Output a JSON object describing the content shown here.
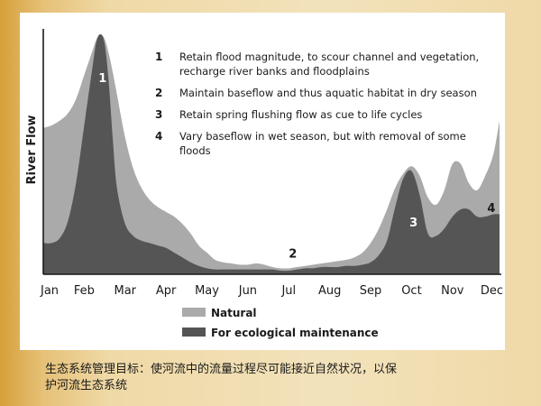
{
  "caption": [
    "生态系统管理目标：使河流中的流量过程尽可能接近自然状况，以保",
    "护河流生态系统"
  ],
  "colors": {
    "natural": "#aaaaaa",
    "ecological": "#555555",
    "axis": "#1a1a1a",
    "label_light": "#ffffff"
  },
  "chart_data": {
    "type": "area",
    "title": "",
    "ylabel": "River Flow",
    "xlabel": "",
    "categories": [
      "Jan",
      "Feb",
      "Mar",
      "Apr",
      "May",
      "Jun",
      "Jul",
      "Aug",
      "Sep",
      "Oct",
      "Nov",
      "Dec"
    ],
    "x_range": [
      0,
      11.15
    ],
    "ylim": [
      0,
      100
    ],
    "grid": false,
    "legend_position": "bottom-left",
    "series": [
      {
        "name": "Natural",
        "x": [
          0,
          0.2,
          0.4,
          0.6,
          0.8,
          1.0,
          1.2,
          1.3,
          1.4,
          1.5,
          1.6,
          1.7,
          1.8,
          2.0,
          2.2,
          2.4,
          2.6,
          2.8,
          3.0,
          3.2,
          3.4,
          3.6,
          3.8,
          4.0,
          4.2,
          4.4,
          4.6,
          4.8,
          5.0,
          5.2,
          5.4,
          5.6,
          5.8,
          6.0,
          6.2,
          6.4,
          6.6,
          6.8,
          7.0,
          7.2,
          7.4,
          7.6,
          7.8,
          8.0,
          8.2,
          8.4,
          8.6,
          8.8,
          9.0,
          9.2,
          9.4,
          9.6,
          9.8,
          10.0,
          10.2,
          10.4,
          10.6,
          10.8,
          11.0,
          11.15
        ],
        "values": [
          61,
          62,
          64,
          67,
          73,
          83,
          93,
          98,
          100,
          98,
          92,
          84,
          75,
          57,
          44,
          36,
          31,
          28,
          26,
          24,
          21,
          17,
          12,
          9,
          6,
          5,
          4.5,
          4,
          4,
          4.5,
          4,
          3,
          2.5,
          2.5,
          3,
          3.5,
          4,
          4.5,
          5,
          5.5,
          6,
          7,
          9,
          13,
          19,
          27,
          36,
          42,
          45,
          41,
          32,
          29,
          35,
          46,
          46,
          38,
          35,
          41,
          50,
          64
        ]
      },
      {
        "name": "For ecological maintenance",
        "x": [
          0,
          0.2,
          0.4,
          0.6,
          0.8,
          1.0,
          1.2,
          1.3,
          1.4,
          1.5,
          1.6,
          1.7,
          1.8,
          2.0,
          2.2,
          2.4,
          2.6,
          2.8,
          3.0,
          3.2,
          3.4,
          3.6,
          3.8,
          4.0,
          4.2,
          4.4,
          4.6,
          4.8,
          5.0,
          5.2,
          5.4,
          5.6,
          5.8,
          6.0,
          6.2,
          6.4,
          6.6,
          6.8,
          7.0,
          7.2,
          7.4,
          7.6,
          7.8,
          8.0,
          8.2,
          8.4,
          8.6,
          8.8,
          9.0,
          9.2,
          9.4,
          9.6,
          9.8,
          10.0,
          10.2,
          10.4,
          10.6,
          10.8,
          11.0,
          11.15
        ],
        "values": [
          13,
          13,
          15,
          22,
          38,
          62,
          86,
          97,
          100,
          96,
          80,
          56,
          36,
          21,
          16,
          14,
          13,
          12,
          11,
          9,
          7,
          5,
          3.5,
          2.5,
          2,
          2,
          2,
          2,
          2,
          2,
          2,
          2,
          1.5,
          1.5,
          2,
          2.5,
          2.5,
          3,
          3,
          3,
          3.5,
          3.5,
          4,
          5,
          8,
          14,
          28,
          40,
          43,
          33,
          17,
          16,
          19,
          24,
          27,
          27,
          24,
          24,
          25,
          25
        ]
      }
    ],
    "peak_labels": [
      "1",
      "2",
      "3",
      "4"
    ],
    "notes": [
      {
        "num": "1",
        "lines": [
          "Retain flood magnitude, to scour channel and vegetation,",
          "recharge river banks and floodplains"
        ]
      },
      {
        "num": "2",
        "lines": [
          "Maintain baseflow and thus aquatic habitat in dry season"
        ]
      },
      {
        "num": "3",
        "lines": [
          "Retain spring flushing flow as cue to life cycles"
        ]
      },
      {
        "num": "4",
        "lines": [
          "Vary baseflow in wet season, but with removal of some",
          "floods"
        ]
      }
    ]
  }
}
